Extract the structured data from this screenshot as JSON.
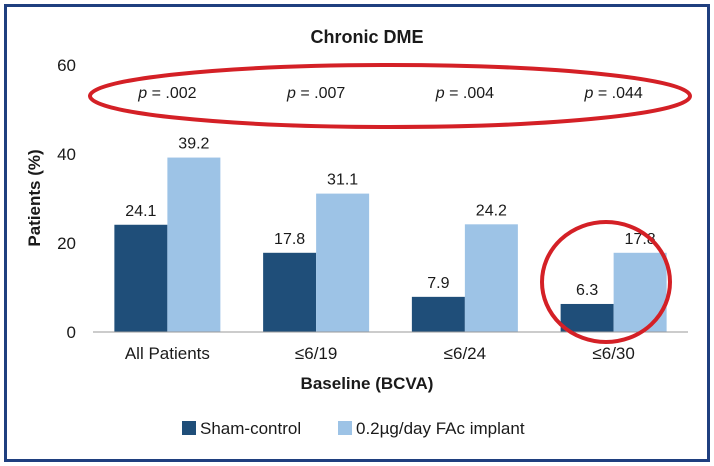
{
  "chart_data": {
    "type": "bar",
    "title": "Chronic DME",
    "xlabel": "Baseline (BCVA)",
    "ylabel": "Patients (%)",
    "ylim": [
      0,
      60
    ],
    "yticks": [
      "0",
      "20",
      "40",
      "60"
    ],
    "categories": [
      "All Patients",
      "≤6/19",
      "≤6/24",
      "≤6/30"
    ],
    "series": [
      {
        "name": "Sham-control",
        "values": [
          24.1,
          17.8,
          7.9,
          6.3
        ],
        "labels": [
          "24.1",
          "17.8",
          "7.9",
          "6.3"
        ],
        "color": "#1f4e79"
      },
      {
        "name": "0.2µg/day FAc implant",
        "values": [
          39.2,
          31.1,
          24.2,
          17.8
        ],
        "labels": [
          "39.2",
          "31.1",
          "24.2",
          "17.8"
        ],
        "color": "#9dc3e6"
      }
    ],
    "annotations": {
      "p_values": [
        {
          "prefix": "p",
          "text": " = .002"
        },
        {
          "prefix": "p",
          "text": " = .007"
        },
        {
          "prefix": "p",
          "text": " = .004"
        },
        {
          "prefix": "p",
          "text": " = .044"
        }
      ],
      "highlight_color": "#d42026"
    },
    "grid": false,
    "legend_position": "bottom"
  }
}
